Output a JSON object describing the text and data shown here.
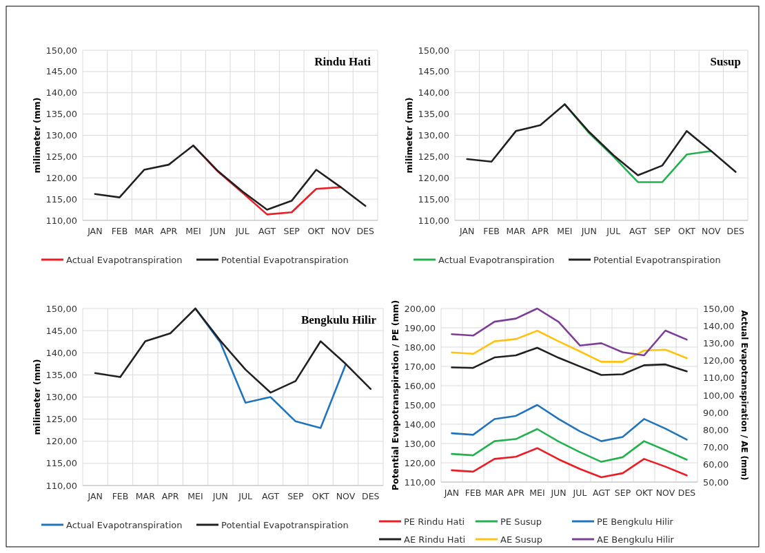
{
  "chart_data": [
    {
      "type": "line",
      "title": "Rindu Hati",
      "ylabel": "milimeter (mm)",
      "categories": [
        "JAN",
        "FEB",
        "MAR",
        "APR",
        "MEI",
        "JUN",
        "JUL",
        "AGT",
        "SEP",
        "OKT",
        "NOV",
        "DES"
      ],
      "ylim": [
        110,
        150
      ],
      "yticks": [
        {
          "value": 110,
          "label": "110,00"
        },
        {
          "value": 115,
          "label": "115,00"
        },
        {
          "value": 120,
          "label": "120,00"
        },
        {
          "value": 125,
          "label": "125,00"
        },
        {
          "value": 130,
          "label": "130,00"
        },
        {
          "value": 135,
          "label": "135,00"
        },
        {
          "value": 140,
          "label": "140,00"
        },
        {
          "value": 145,
          "label": "145,00"
        },
        {
          "value": 150,
          "label": "150,00"
        }
      ],
      "grid": true,
      "legend": "bottom",
      "marker": "none",
      "line_style": "solid",
      "series": [
        {
          "name": "Actual Evapotranspiration",
          "color": "#ed1c24",
          "values": [
            null,
            null,
            null,
            null,
            127.6,
            121.5,
            116.5,
            111.4,
            111.9,
            117.4,
            117.8,
            null
          ]
        },
        {
          "name": "Potential Evapotranspiration",
          "color": "#231f20",
          "values": [
            116.2,
            115.4,
            121.9,
            123.1,
            127.6,
            121.6,
            116.8,
            112.5,
            114.6,
            121.9,
            117.8,
            113.4
          ]
        }
      ]
    },
    {
      "type": "line",
      "title": "Susup",
      "ylabel": "milimeter (mm)",
      "categories": [
        "JAN",
        "FEB",
        "MAR",
        "APR",
        "MEI",
        "JUN",
        "JUL",
        "AGT",
        "SEP",
        "OKT",
        "NOV",
        "DES"
      ],
      "ylim": [
        110,
        150
      ],
      "yticks": [
        {
          "value": 110,
          "label": "110,00"
        },
        {
          "value": 115,
          "label": "115,00"
        },
        {
          "value": 120,
          "label": "120,00"
        },
        {
          "value": 125,
          "label": "125,00"
        },
        {
          "value": 130,
          "label": "130,00"
        },
        {
          "value": 135,
          "label": "135,00"
        },
        {
          "value": 140,
          "label": "140,00"
        },
        {
          "value": 145,
          "label": "145,00"
        },
        {
          "value": 150,
          "label": "150,00"
        }
      ],
      "grid": true,
      "legend": "bottom",
      "marker": "none",
      "line_style": "solid",
      "series": [
        {
          "name": "Actual Evapotranspiration",
          "color": "#22b14c",
          "values": [
            null,
            null,
            null,
            null,
            137.3,
            130.5,
            125.0,
            119.0,
            119.0,
            125.5,
            126.3,
            null
          ]
        },
        {
          "name": "Potential Evapotranspiration",
          "color": "#231f20",
          "values": [
            124.4,
            123.8,
            131.0,
            132.4,
            137.3,
            130.8,
            125.3,
            120.6,
            122.9,
            131.0,
            126.3,
            121.4
          ]
        }
      ]
    },
    {
      "type": "line",
      "title": "Bengkulu Hilir",
      "ylabel": "milimeter (mm)",
      "categories": [
        "JAN",
        "FEB",
        "MAR",
        "APR",
        "MEI",
        "JUN",
        "JUL",
        "AGT",
        "SEP",
        "OKT",
        "NOV",
        "DES"
      ],
      "ylim": [
        110,
        150
      ],
      "yticks": [
        {
          "value": 110,
          "label": "110,00"
        },
        {
          "value": 115,
          "label": "115,00"
        },
        {
          "value": 120,
          "label": "120,00"
        },
        {
          "value": 125,
          "label": "125,00"
        },
        {
          "value": 130,
          "label": "130,00"
        },
        {
          "value": 135,
          "label": "135,00"
        },
        {
          "value": 140,
          "label": "140,00"
        },
        {
          "value": 145,
          "label": "145,00"
        },
        {
          "value": 150,
          "label": "150,00"
        }
      ],
      "grid": true,
      "legend": "bottom",
      "marker": "none",
      "line_style": "solid",
      "series": [
        {
          "name": "Actual Evapotranspiration",
          "color": "#1f74bb",
          "values": [
            null,
            null,
            null,
            null,
            150.0,
            142.3,
            128.7,
            130.0,
            124.5,
            123.0,
            137.3,
            null
          ]
        },
        {
          "name": "Potential Evapotranspiration",
          "color": "#231f20",
          "values": [
            135.4,
            134.5,
            142.6,
            144.4,
            150.0,
            142.7,
            136.2,
            131.0,
            133.6,
            142.6,
            137.5,
            131.8
          ]
        }
      ]
    },
    {
      "type": "line",
      "ylabel": "Potential Evapotranspiration / PE (mm)",
      "y2label": "Actual Evapotranspiration / AE (mm)",
      "categories": [
        "JAN",
        "FEB",
        "MAR",
        "APR",
        "MEI",
        "JUN",
        "JUL",
        "AGT",
        "SEP",
        "OKT",
        "NOV",
        "DES"
      ],
      "ylim": [
        110,
        200
      ],
      "yticks": [
        {
          "value": 110,
          "label": "110,00"
        },
        {
          "value": 120,
          "label": "120,00"
        },
        {
          "value": 130,
          "label": "130,00"
        },
        {
          "value": 140,
          "label": "140,00"
        },
        {
          "value": 150,
          "label": "150,00"
        },
        {
          "value": 160,
          "label": "160,00"
        },
        {
          "value": 170,
          "label": "170,00"
        },
        {
          "value": 180,
          "label": "180,00"
        },
        {
          "value": 190,
          "label": "190,00"
        },
        {
          "value": 200,
          "label": "200,00"
        }
      ],
      "y2lim": [
        50,
        150
      ],
      "y2ticks": [
        {
          "value": 50,
          "label": "50,00"
        },
        {
          "value": 60,
          "label": "60,00"
        },
        {
          "value": 70,
          "label": "70,00"
        },
        {
          "value": 80,
          "label": "80,00"
        },
        {
          "value": 90,
          "label": "90,00"
        },
        {
          "value": 100,
          "label": "100,00"
        },
        {
          "value": 110,
          "label": "110,00"
        },
        {
          "value": 120,
          "label": "120,00"
        },
        {
          "value": 130,
          "label": "130,00"
        },
        {
          "value": 140,
          "label": "140,00"
        },
        {
          "value": 150,
          "label": "150,00"
        }
      ],
      "grid": true,
      "legend": "bottom",
      "marker": "none",
      "line_style": "solid",
      "series": [
        {
          "name": "PE Rindu Hati",
          "color": "#ed1c24",
          "values": [
            116.1,
            115.4,
            122.0,
            123.1,
            127.6,
            121.8,
            116.8,
            112.5,
            114.6,
            122.0,
            118.0,
            113.5
          ]
        },
        {
          "name": "PE Susup",
          "color": "#22b14c",
          "values": [
            124.6,
            123.9,
            131.2,
            132.3,
            137.5,
            131.0,
            125.5,
            120.5,
            122.9,
            131.2,
            126.5,
            121.6
          ]
        },
        {
          "name": "PE Bengkulu Hilir",
          "color": "#1f74bb",
          "values": [
            135.3,
            134.5,
            142.7,
            144.3,
            150.0,
            142.7,
            136.3,
            131.2,
            133.4,
            142.7,
            137.7,
            132.0
          ]
        },
        {
          "name": "AE Rindu Hati",
          "color": "#231f20",
          "axis": "y2",
          "values": [
            116.1,
            115.8,
            121.8,
            123.0,
            127.4,
            121.6,
            116.6,
            111.7,
            112.1,
            117.3,
            117.8,
            113.8
          ]
        },
        {
          "name": "AE Susup",
          "color": "#ffc20e",
          "axis": "y2",
          "values": [
            124.7,
            123.9,
            131.1,
            132.4,
            137.2,
            131.1,
            125.3,
            119.3,
            119.3,
            125.8,
            126.3,
            121.4
          ]
        },
        {
          "name": "AE Bengkulu Hilir",
          "color": "#7b3f98",
          "axis": "y2",
          "values": [
            135.2,
            134.4,
            142.4,
            144.2,
            150.0,
            142.3,
            128.7,
            130.0,
            124.8,
            123.0,
            137.3,
            132.1
          ]
        }
      ]
    }
  ]
}
